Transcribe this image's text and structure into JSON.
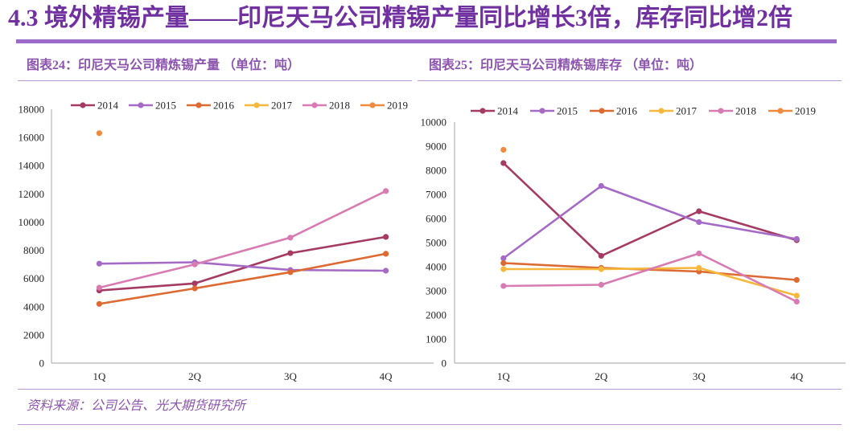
{
  "page": {
    "title": "4.3 境外精锡产量——印尼天马公司精锡产量同比增长3倍，库存同比增2倍",
    "source": "资料来源：公司公告、光大期货研究所"
  },
  "colors": {
    "title": "#7030A0",
    "rule": "#9C6AC9",
    "caption": "#8C55AD",
    "divider": "#BF97D6",
    "axis": "#B3B3B3",
    "tick": "#262626"
  },
  "chart_data": [
    {
      "type": "line",
      "title": "图表24：印尼天马公司精炼锡产量 （单位：吨）",
      "xlabel": "",
      "ylabel": "",
      "categories": [
        "1Q",
        "2Q",
        "3Q",
        "4Q"
      ],
      "ylim": [
        0,
        18000
      ],
      "yticks": [
        0,
        2000,
        4000,
        6000,
        8000,
        10000,
        12000,
        14000,
        16000,
        18000
      ],
      "grid": false,
      "legend": "top",
      "series": [
        {
          "name": "2014",
          "color": "#A53B63",
          "values": [
            5150,
            5650,
            7800,
            8950
          ]
        },
        {
          "name": "2015",
          "color": "#A56AC6",
          "values": [
            7050,
            7150,
            6600,
            6550
          ]
        },
        {
          "name": "2016",
          "color": "#DC6A32",
          "values": [
            4200,
            5300,
            6450,
            7750
          ]
        },
        {
          "name": "2017",
          "color": "#F6B83C",
          "values": [
            null,
            null,
            null,
            null
          ]
        },
        {
          "name": "2018",
          "color": "#D97BB3",
          "values": [
            5350,
            7000,
            8900,
            12200
          ]
        },
        {
          "name": "2019",
          "color": "#EF8A3E",
          "values": [
            16300,
            null,
            null,
            null
          ]
        }
      ]
    },
    {
      "type": "line",
      "title": "图表25：印尼天马公司精炼锡库存 （单位：吨）",
      "xlabel": "",
      "ylabel": "",
      "categories": [
        "1Q",
        "2Q",
        "3Q",
        "4Q"
      ],
      "ylim": [
        0,
        10000
      ],
      "yticks": [
        0,
        1000,
        2000,
        3000,
        4000,
        5000,
        6000,
        7000,
        8000,
        9000,
        10000
      ],
      "grid": false,
      "legend": "top",
      "series": [
        {
          "name": "2014",
          "color": "#A53B63",
          "values": [
            8300,
            4450,
            6300,
            5100
          ]
        },
        {
          "name": "2015",
          "color": "#A56AC6",
          "values": [
            4350,
            7350,
            5850,
            5150
          ]
        },
        {
          "name": "2016",
          "color": "#DC6A32",
          "values": [
            4150,
            3950,
            3800,
            3450
          ]
        },
        {
          "name": "2017",
          "color": "#F6B83C",
          "values": [
            3900,
            3900,
            3950,
            2800
          ]
        },
        {
          "name": "2018",
          "color": "#D97BB3",
          "values": [
            3200,
            3250,
            4550,
            2550
          ]
        },
        {
          "name": "2019",
          "color": "#EF8A3E",
          "values": [
            8850,
            null,
            null,
            null
          ]
        }
      ]
    }
  ]
}
